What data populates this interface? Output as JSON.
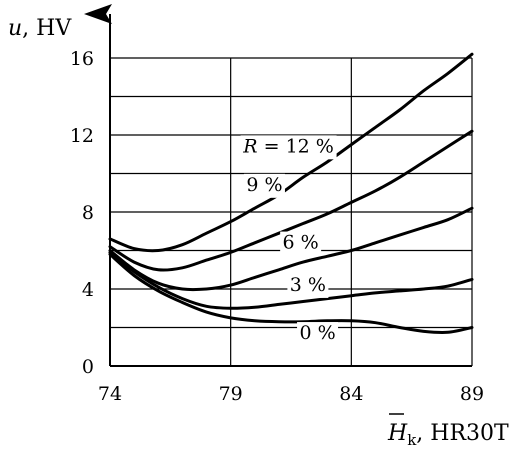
{
  "chart_data": {
    "type": "line",
    "xlabel_main": "H",
    "xlabel_sub": "k",
    "xlabel_suffix": ", HR30T",
    "ylabel_italic": "u",
    "ylabel_suffix": ", HV",
    "xlim": [
      74,
      89
    ],
    "ylim": [
      0,
      16
    ],
    "x_ticks": [
      "74",
      "79",
      "84",
      "89"
    ],
    "y_ticks": [
      "0",
      "4",
      "8",
      "12",
      "16"
    ],
    "grid": true,
    "series": [
      {
        "name": "0 %",
        "x": [
          74,
          75,
          76,
          77,
          78,
          79,
          80,
          81,
          82,
          83,
          84,
          85,
          86,
          87,
          88,
          89
        ],
        "y": [
          5.8,
          4.7,
          3.9,
          3.3,
          2.8,
          2.5,
          2.35,
          2.3,
          2.3,
          2.35,
          2.35,
          2.25,
          2.0,
          1.8,
          1.75,
          2.0
        ]
      },
      {
        "name": "3 %",
        "x": [
          74,
          75,
          76,
          77,
          78,
          79,
          80,
          81,
          82,
          83,
          84,
          85,
          86,
          87,
          88,
          89
        ],
        "y": [
          5.9,
          4.9,
          4.1,
          3.5,
          3.1,
          3.0,
          3.05,
          3.2,
          3.35,
          3.5,
          3.65,
          3.8,
          3.9,
          4.0,
          4.15,
          4.5
        ]
      },
      {
        "name": "6 %",
        "x": [
          74,
          75,
          76,
          77,
          78,
          79,
          80,
          81,
          82,
          83,
          84,
          85,
          86,
          87,
          88,
          89
        ],
        "y": [
          6.0,
          5.0,
          4.3,
          4.0,
          4.0,
          4.2,
          4.6,
          5.0,
          5.4,
          5.7,
          6.0,
          6.4,
          6.8,
          7.2,
          7.6,
          8.2
        ]
      },
      {
        "name": "9 %",
        "x": [
          74,
          75,
          76,
          77,
          78,
          79,
          80,
          81,
          82,
          83,
          84,
          85,
          86,
          87,
          88,
          89
        ],
        "y": [
          6.2,
          5.4,
          5.0,
          5.1,
          5.5,
          5.9,
          6.4,
          6.9,
          7.4,
          7.9,
          8.5,
          9.1,
          9.8,
          10.6,
          11.4,
          12.2
        ]
      },
      {
        "name": "12 %",
        "x": [
          74,
          75,
          76,
          77,
          78,
          79,
          80,
          81,
          82,
          83,
          84,
          85,
          86,
          87,
          88,
          89
        ],
        "y": [
          6.6,
          6.1,
          6.0,
          6.3,
          6.9,
          7.5,
          8.2,
          8.9,
          9.8,
          10.6,
          11.5,
          12.4,
          13.3,
          14.3,
          15.2,
          16.2
        ]
      }
    ],
    "series_labels": [
      "R = 12 %",
      "9 %",
      "6 %",
      "3 %",
      "0 %"
    ],
    "series_label_prefix": "R"
  }
}
